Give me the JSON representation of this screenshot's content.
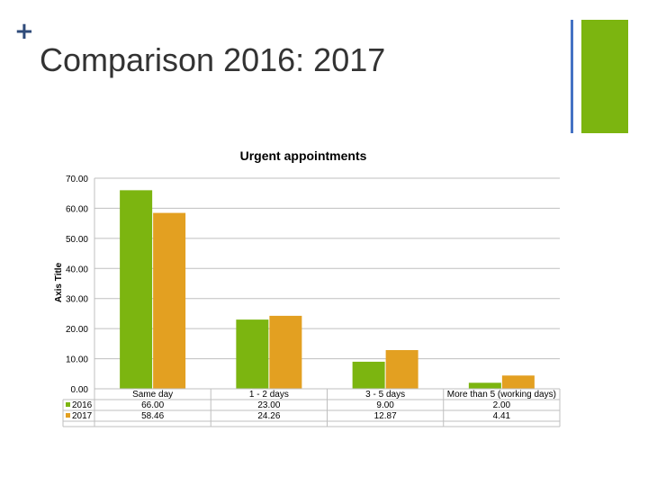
{
  "slide": {
    "plus": "+",
    "title": "Comparison 2016: 2017"
  },
  "colors": {
    "series_2016": "#7cb510",
    "series_2017": "#e3a021",
    "accent_blue": "#4472c4",
    "accent_green": "#7cb510"
  },
  "chart_data": {
    "type": "bar",
    "title": "Urgent appointments",
    "xlabel": "",
    "ylabel": "Axis Title",
    "ylim": [
      0,
      70
    ],
    "yticks": [
      "0.00",
      "10.00",
      "20.00",
      "30.00",
      "40.00",
      "50.00",
      "60.00",
      "70.00"
    ],
    "grid": true,
    "legend": "data-table",
    "categories": [
      "Same day",
      "1 - 2 days",
      "3 - 5 days",
      "More than 5 (working days)"
    ],
    "series": [
      {
        "name": "2016",
        "values": [
          66.0,
          23.0,
          9.0,
          2.0
        ],
        "labels": [
          "66.00",
          "23.00",
          "9.00",
          "2.00"
        ]
      },
      {
        "name": "2017",
        "values": [
          58.46,
          24.26,
          12.87,
          4.41
        ],
        "labels": [
          "58.46",
          "24.26",
          "12.87",
          "4.41"
        ]
      }
    ]
  }
}
